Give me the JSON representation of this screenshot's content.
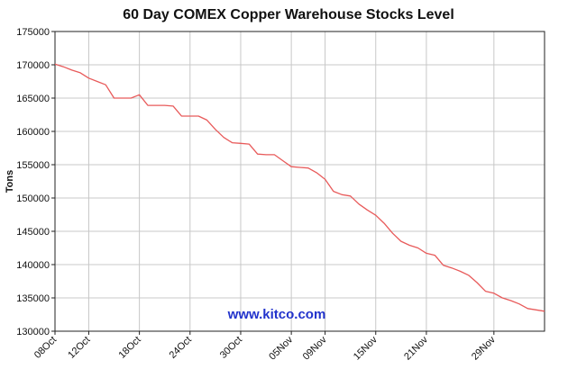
{
  "chart_data": {
    "type": "line",
    "title": "60 Day COMEX Copper Warehouse Stocks Level",
    "xlabel": "",
    "ylabel": "Tons",
    "ylim": [
      130000,
      175000
    ],
    "yticks": [
      130000,
      135000,
      140000,
      145000,
      150000,
      155000,
      160000,
      165000,
      170000,
      175000
    ],
    "xlim": [
      "2013-10-08",
      "2013-12-05"
    ],
    "xticks": [
      "08Oct",
      "12Oct",
      "18Oct",
      "24Oct",
      "30Oct",
      "05Nov",
      "09Nov",
      "15Nov",
      "21Nov",
      "29Nov"
    ],
    "grid": true,
    "legend": "none",
    "line_color": "#e85a5a",
    "grid_color": "#c8c8c8",
    "watermark": "www.kitco.com",
    "series": [
      {
        "x": [
          "2013-10-08",
          "2013-10-09",
          "2013-10-10",
          "2013-10-11",
          "2013-10-12",
          "2013-10-13",
          "2013-10-14",
          "2013-10-15",
          "2013-10-16",
          "2013-10-17",
          "2013-10-18",
          "2013-10-19",
          "2013-10-20",
          "2013-10-21",
          "2013-10-22",
          "2013-10-23",
          "2013-10-24",
          "2013-10-25",
          "2013-10-26",
          "2013-10-27",
          "2013-10-28",
          "2013-10-29",
          "2013-10-30",
          "2013-10-31",
          "2013-11-01",
          "2013-11-02",
          "2013-11-03",
          "2013-11-04",
          "2013-11-05",
          "2013-11-06",
          "2013-11-07",
          "2013-11-08",
          "2013-11-09",
          "2013-11-10",
          "2013-11-11",
          "2013-11-12",
          "2013-11-13",
          "2013-11-14",
          "2013-11-15",
          "2013-11-16",
          "2013-11-17",
          "2013-11-18",
          "2013-11-19",
          "2013-11-20",
          "2013-11-21",
          "2013-11-22",
          "2013-11-23",
          "2013-11-24",
          "2013-11-25",
          "2013-11-26",
          "2013-11-27",
          "2013-11-28",
          "2013-11-29",
          "2013-11-30",
          "2013-12-01",
          "2013-12-02",
          "2013-12-03",
          "2013-12-04",
          "2013-12-05"
        ],
        "values": [
          170100,
          169700,
          169200,
          168800,
          168000,
          167500,
          167000,
          165000,
          165000,
          165000,
          165500,
          163900,
          163900,
          163900,
          163800,
          162300,
          162300,
          162300,
          161700,
          160300,
          159100,
          158300,
          158200,
          158100,
          156600,
          156500,
          156500,
          155600,
          154700,
          154600,
          154500,
          153800,
          152800,
          151000,
          150500,
          150300,
          149100,
          148200,
          147400,
          146200,
          144700,
          143500,
          142900,
          142500,
          141700,
          141400,
          139900,
          139500,
          139000,
          138400,
          137300,
          136000,
          135700,
          135000,
          134600,
          134100,
          133400,
          133200,
          133000
        ]
      }
    ]
  }
}
